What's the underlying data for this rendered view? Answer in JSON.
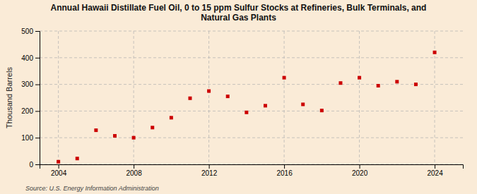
{
  "chart_data": {
    "type": "scatter",
    "title": "Annual Hawaii Distillate Fuel Oil, 0 to 15 ppm Sulfur Stocks at Refineries, Bulk Terminals, and\nNatural Gas Plants",
    "ylabel": "Thousand Barrels",
    "annotation": "Source: U.S. Energy Information Administration",
    "x": [
      2004,
      2005,
      2006,
      2007,
      2008,
      2009,
      2010,
      2011,
      2012,
      2013,
      2014,
      2015,
      2016,
      2017,
      2018,
      2019,
      2020,
      2021,
      2022,
      2023,
      2024
    ],
    "values": [
      10,
      22,
      128,
      107,
      100,
      138,
      175,
      248,
      275,
      255,
      195,
      220,
      325,
      225,
      202,
      305,
      325,
      295,
      310,
      300,
      420
    ],
    "xlim": [
      2003.0,
      2025.5
    ],
    "ylim": [
      0,
      500
    ],
    "xticks": [
      2004,
      2008,
      2012,
      2016,
      2020,
      2024
    ],
    "yticks": [
      0,
      100,
      200,
      300,
      400,
      500
    ],
    "grid": true,
    "color": "#cc0000",
    "marker": "square"
  }
}
